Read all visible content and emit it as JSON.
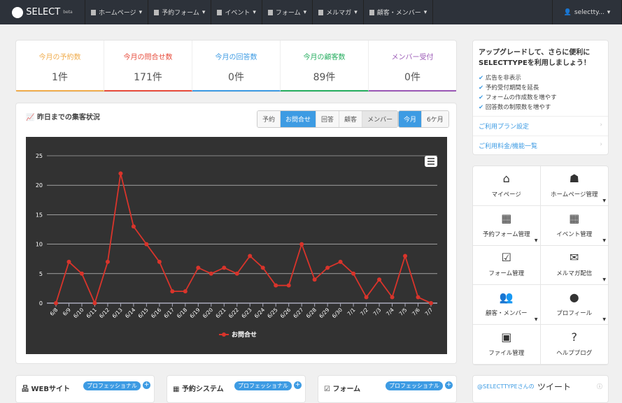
{
  "nav": {
    "logo": "SELECT",
    "logo_sub": "beta",
    "items": [
      "ホームページ",
      "予約フォーム",
      "イベント",
      "フォーム",
      "メルマガ",
      "顧客・メンバー"
    ],
    "user": "selectty..."
  },
  "stats": [
    {
      "label": "今月の予約数",
      "value": "1件",
      "color": "#f0ad4e"
    },
    {
      "label": "今月の問合せ数",
      "value": "171件",
      "color": "#e74c3c"
    },
    {
      "label": "今月の回答数",
      "value": "0件",
      "color": "#3d9be3"
    },
    {
      "label": "今月の顧客数",
      "value": "89件",
      "color": "#27ae60"
    },
    {
      "label": "メンバー受付",
      "value": "0件",
      "color": "#9b59b6"
    }
  ],
  "chart_panel": {
    "title": "昨日までの集客状況",
    "type_buttons": [
      "予約",
      "お問合せ",
      "回答",
      "顧客",
      "メンバー"
    ],
    "active_type": "お問合せ",
    "period_buttons": [
      "今月",
      "6ケ月"
    ],
    "active_period": "今月"
  },
  "chart_data": {
    "type": "line",
    "categories": [
      "6/8",
      "6/9",
      "6/10",
      "6/11",
      "6/12",
      "6/13",
      "6/14",
      "6/15",
      "6/16",
      "6/17",
      "6/18",
      "6/19",
      "6/20",
      "6/21",
      "6/22",
      "6/23",
      "6/24",
      "6/25",
      "6/26",
      "6/27",
      "6/28",
      "6/29",
      "6/30",
      "7/1",
      "7/2",
      "7/3",
      "7/4",
      "7/5",
      "7/6",
      "7/7"
    ],
    "series": [
      {
        "name": "お問合せ",
        "values": [
          0,
          7,
          5,
          0,
          7,
          22,
          13,
          10,
          7,
          2,
          2,
          6,
          5,
          6,
          5,
          8,
          6,
          3,
          3,
          10,
          4,
          6,
          7,
          5,
          1,
          4,
          1,
          8,
          1,
          0
        ],
        "color": "#d9342b"
      }
    ],
    "ylim": [
      0,
      25
    ],
    "yticks": [
      0,
      5,
      10,
      15,
      20,
      25
    ],
    "grid": true,
    "legend": "bottom"
  },
  "upgrade": {
    "title": "アップグレードして、さらに便利にSELECTTYPEを利用しましょう！",
    "items": [
      "広告を非表示",
      "予約受付期間を延長",
      "フォームの作成数を増やす",
      "回答数の制限数を増やす"
    ],
    "links": [
      "ご利用プラン設定",
      "ご利用料金/機能一覧"
    ]
  },
  "menu": [
    {
      "label": "マイページ",
      "icon": "home-icon",
      "glyph": "⌂"
    },
    {
      "label": "ホームページ管理",
      "icon": "sitemap-icon",
      "glyph": "☗"
    },
    {
      "label": "予約フォーム管理",
      "icon": "calendar-icon",
      "glyph": "▦"
    },
    {
      "label": "イベント管理",
      "icon": "calendar-icon",
      "glyph": "▦"
    },
    {
      "label": "フォーム管理",
      "icon": "check-square-icon",
      "glyph": "☑"
    },
    {
      "label": "メルマガ配信",
      "icon": "envelope-icon",
      "glyph": "✉"
    },
    {
      "label": "顧客・メンバー",
      "icon": "users-icon",
      "glyph": "👥"
    },
    {
      "label": "プロフィール",
      "icon": "user-icon",
      "glyph": "●"
    },
    {
      "label": "ファイル管理",
      "icon": "image-file-icon",
      "glyph": "▣"
    },
    {
      "label": "ヘルプブログ",
      "icon": "question-icon",
      "glyph": "?"
    }
  ],
  "bottom": [
    {
      "title": "WEBサイト",
      "badge": "プロフェッショナル"
    },
    {
      "title": "予約システム",
      "badge": "プロフェッショナル"
    },
    {
      "title": "フォーム",
      "badge": "プロフェッショナル"
    }
  ],
  "tweet": {
    "handle": "@SELECTTYPEさんの",
    "title": "ツイート"
  }
}
